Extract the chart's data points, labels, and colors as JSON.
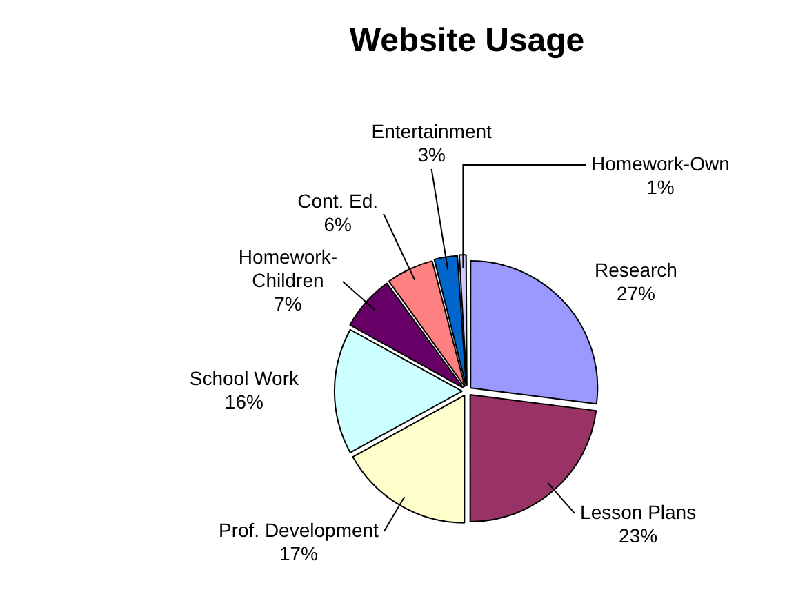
{
  "chart_data": {
    "type": "pie",
    "title": "Website Usage",
    "categories": [
      "Research",
      "Lesson Plans",
      "Prof. Development",
      "School Work",
      "Homework-Children",
      "Cont. Ed.",
      "Entertainment",
      "Homework-Own"
    ],
    "values": [
      27,
      23,
      17,
      16,
      7,
      6,
      3,
      1
    ],
    "value_labels": [
      "27%",
      "23%",
      "17%",
      "16%",
      "7%",
      "6%",
      "3%",
      "1%"
    ],
    "colors": [
      "#9999ff",
      "#993366",
      "#ffffcc",
      "#ccffff",
      "#660066",
      "#ff8080",
      "#0066cc",
      "#ccccff"
    ],
    "legend": false
  }
}
